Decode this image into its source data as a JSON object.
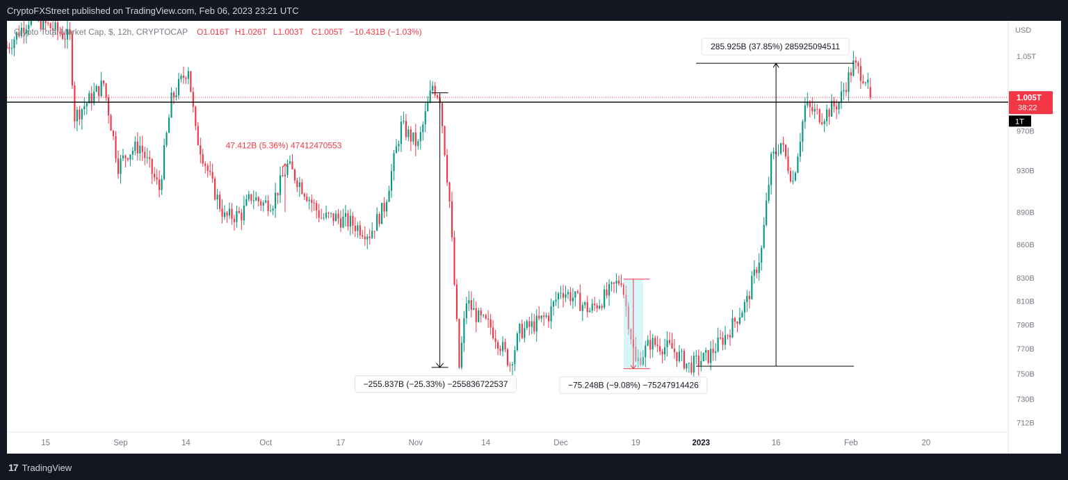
{
  "header": {
    "published": "CryptoFXStreet published on TradingView.com, Feb 06, 2023 23:21 UTC"
  },
  "footer": {
    "brand": "TradingView",
    "logo_mark": "17"
  },
  "chart_data": {
    "type": "candlestick",
    "symbol_legend": "Crypto Total Market Cap, $, 12h, CRYPTOCAP",
    "ohlc_text": {
      "o": "O1.016T",
      "h": "H1.026T",
      "l": "L1.003T",
      "c": "C1.005T",
      "chg": "−10.431B (−1.03%)"
    },
    "y_axis": {
      "currency": "USD",
      "ticks": [
        {
          "v": 1050,
          "label": "1.05T"
        },
        {
          "v": 970,
          "label": "970B"
        },
        {
          "v": 930,
          "label": "930B"
        },
        {
          "v": 890,
          "label": "890B"
        },
        {
          "v": 860,
          "label": "860B"
        },
        {
          "v": 830,
          "label": "830B"
        },
        {
          "v": 810,
          "label": "810B"
        },
        {
          "v": 790,
          "label": "790B"
        },
        {
          "v": 770,
          "label": "770B"
        },
        {
          "v": 750,
          "label": "750B"
        },
        {
          "v": 730,
          "label": "730B"
        },
        {
          "v": 712,
          "label": "712B"
        }
      ],
      "range": [
        705,
        1090
      ],
      "scale": "log"
    },
    "x_axis": {
      "range_index": [
        0,
        414
      ],
      "ticks": [
        {
          "i": 16,
          "label": "15",
          "bold": false
        },
        {
          "i": 47,
          "label": "Sep",
          "bold": false
        },
        {
          "i": 74,
          "label": "14",
          "bold": false
        },
        {
          "i": 107,
          "label": "Oct",
          "bold": false
        },
        {
          "i": 138,
          "label": "17",
          "bold": false
        },
        {
          "i": 169,
          "label": "Nov",
          "bold": false
        },
        {
          "i": 198,
          "label": "14",
          "bold": false
        },
        {
          "i": 229,
          "label": "Dec",
          "bold": false
        },
        {
          "i": 260,
          "label": "19",
          "bold": false
        },
        {
          "i": 287,
          "label": "2023",
          "bold": true
        },
        {
          "i": 318,
          "label": "16",
          "bold": false
        },
        {
          "i": 349,
          "label": "Feb",
          "bold": false
        },
        {
          "i": 380,
          "label": "20",
          "bold": false
        }
      ]
    },
    "price_label": {
      "price": "1.005T",
      "countdown": "38:22",
      "value": 1005,
      "color": "#f23645"
    },
    "level_label": {
      "text": "1T",
      "value": 1000
    },
    "horizontal_line": {
      "value": 1000,
      "color": "#000000"
    },
    "measurements": [
      {
        "text": "47.412B (5.36%) 47412470553",
        "color": "#f23645",
        "from": {
          "i": 115,
          "v": 890
        },
        "to": {
          "i": 117,
          "v": 937
        }
      },
      {
        "text": "−255.837B (−25.33%) −255836722537",
        "color": "#000000",
        "from": {
          "i": 179,
          "v": 1010
        },
        "to": {
          "i": 179,
          "v": 755
        }
      },
      {
        "text": "−75.248B (−9.08%) −75247914426",
        "color": "#f23645",
        "from": {
          "i": 259,
          "v": 829
        },
        "to": {
          "i": 259,
          "v": 754
        }
      },
      {
        "text": "285.925B (37.85%) 285925094511",
        "color": "#000000",
        "from": {
          "i": 318,
          "v": 756
        },
        "to": {
          "i": 318,
          "v": 1042
        }
      }
    ],
    "colors": {
      "up": "#089981",
      "down": "#f23645",
      "background": "#ffffff"
    },
    "anchors": [
      {
        "i": 0,
        "v": 1060
      },
      {
        "i": 10,
        "v": 1095
      },
      {
        "i": 26,
        "v": 1070
      },
      {
        "i": 28,
        "v": 985
      },
      {
        "i": 40,
        "v": 1020
      },
      {
        "i": 46,
        "v": 935
      },
      {
        "i": 50,
        "v": 948
      },
      {
        "i": 55,
        "v": 955
      },
      {
        "i": 63,
        "v": 912
      },
      {
        "i": 68,
        "v": 1002
      },
      {
        "i": 75,
        "v": 1038
      },
      {
        "i": 78,
        "v": 968
      },
      {
        "i": 85,
        "v": 915
      },
      {
        "i": 90,
        "v": 885
      },
      {
        "i": 97,
        "v": 888
      },
      {
        "i": 101,
        "v": 905
      },
      {
        "i": 106,
        "v": 898
      },
      {
        "i": 110,
        "v": 900
      },
      {
        "i": 116,
        "v": 935
      },
      {
        "i": 121,
        "v": 918
      },
      {
        "i": 130,
        "v": 885
      },
      {
        "i": 136,
        "v": 885
      },
      {
        "i": 142,
        "v": 880
      },
      {
        "i": 150,
        "v": 870
      },
      {
        "i": 156,
        "v": 895
      },
      {
        "i": 163,
        "v": 975
      },
      {
        "i": 170,
        "v": 955
      },
      {
        "i": 176,
        "v": 1018
      },
      {
        "i": 179,
        "v": 1005
      },
      {
        "i": 183,
        "v": 900
      },
      {
        "i": 187,
        "v": 755
      },
      {
        "i": 190,
        "v": 810
      },
      {
        "i": 195,
        "v": 795
      },
      {
        "i": 200,
        "v": 788
      },
      {
        "i": 205,
        "v": 770
      },
      {
        "i": 208,
        "v": 758
      },
      {
        "i": 212,
        "v": 784
      },
      {
        "i": 218,
        "v": 790
      },
      {
        "i": 224,
        "v": 798
      },
      {
        "i": 229,
        "v": 820
      },
      {
        "i": 235,
        "v": 812
      },
      {
        "i": 241,
        "v": 802
      },
      {
        "i": 248,
        "v": 815
      },
      {
        "i": 254,
        "v": 830
      },
      {
        "i": 260,
        "v": 758
      },
      {
        "i": 266,
        "v": 775
      },
      {
        "i": 275,
        "v": 770
      },
      {
        "i": 282,
        "v": 756
      },
      {
        "i": 290,
        "v": 764
      },
      {
        "i": 298,
        "v": 783
      },
      {
        "i": 306,
        "v": 810
      },
      {
        "i": 312,
        "v": 855
      },
      {
        "i": 316,
        "v": 940
      },
      {
        "i": 320,
        "v": 958
      },
      {
        "i": 325,
        "v": 920
      },
      {
        "i": 330,
        "v": 995
      },
      {
        "i": 337,
        "v": 985
      },
      {
        "i": 344,
        "v": 1000
      },
      {
        "i": 350,
        "v": 1040
      },
      {
        "i": 355,
        "v": 1026
      },
      {
        "i": 357,
        "v": 1005
      }
    ]
  }
}
